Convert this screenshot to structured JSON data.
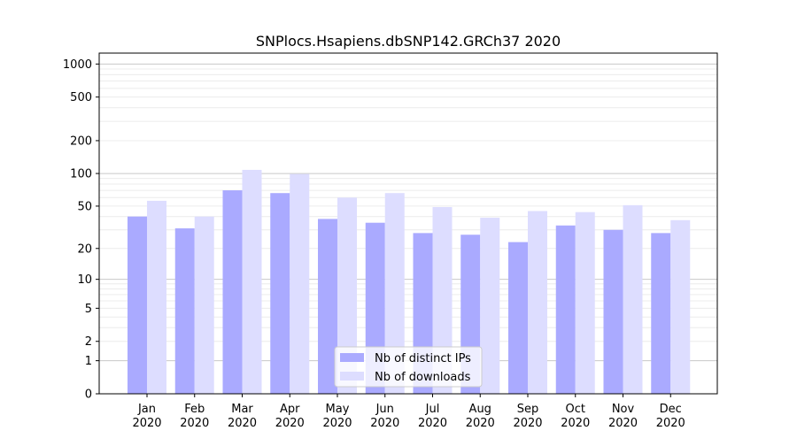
{
  "chart_data": {
    "type": "bar",
    "title": "SNPlocs.Hsapiens.dbSNP142.GRCh37 2020",
    "xlabel": "",
    "ylabel": "",
    "yscale": "log(1+x)",
    "ylim": [
      0,
      1300
    ],
    "yticks": [
      0,
      1,
      2,
      5,
      10,
      20,
      50,
      100,
      200,
      500,
      1000
    ],
    "grid": true,
    "legend_position": "bottom-center",
    "categories": [
      "Jan\n2020",
      "Feb\n2020",
      "Mar\n2020",
      "Apr\n2020",
      "May\n2020",
      "Jun\n2020",
      "Jul\n2020",
      "Aug\n2020",
      "Sep\n2020",
      "Oct\n2020",
      "Nov\n2020",
      "Dec\n2020"
    ],
    "series": [
      {
        "name": "Nb of distinct IPs",
        "color": "#aaaaff",
        "values": [
          40,
          31,
          70,
          66,
          38,
          35,
          28,
          27,
          23,
          33,
          30,
          28
        ]
      },
      {
        "name": "Nb of downloads",
        "color": "#ddddff",
        "values": [
          56,
          40,
          108,
          99,
          60,
          66,
          49,
          39,
          45,
          44,
          51,
          37
        ]
      }
    ]
  }
}
